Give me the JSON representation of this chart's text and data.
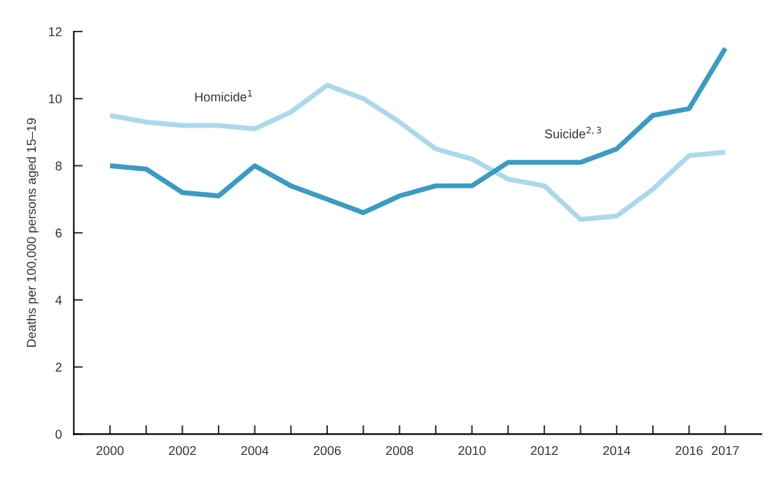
{
  "chart_data": {
    "type": "line",
    "ylabel": "Deaths per 100,000 persons aged 15–19",
    "x": [
      2000,
      2001,
      2002,
      2003,
      2004,
      2005,
      2006,
      2007,
      2008,
      2009,
      2010,
      2011,
      2012,
      2013,
      2014,
      2015,
      2016,
      2017
    ],
    "series": [
      {
        "name": "Homicide$^{1}$",
        "color": "#acd9ea",
        "values": [
          9.5,
          9.3,
          9.2,
          9.2,
          9.1,
          9.6,
          10.4,
          10.0,
          9.3,
          8.5,
          8.2,
          7.6,
          7.4,
          6.4,
          6.5,
          7.3,
          8.3,
          8.4
        ]
      },
      {
        "name": "Suicide$^{2,3}$",
        "color": "#3a9bc3",
        "values": [
          8.0,
          7.9,
          7.2,
          7.1,
          8.0,
          7.4,
          7.0,
          6.6,
          7.1,
          7.4,
          7.4,
          8.1,
          8.1,
          8.1,
          8.5,
          9.5,
          9.7,
          11.5
        ]
      }
    ],
    "xlim": [
      1999,
      2018
    ],
    "ylim": [
      0,
      12
    ],
    "yticks": [
      0,
      2,
      4,
      6,
      8,
      10,
      12
    ],
    "xticks": [
      2000,
      {
        "value": 2001,
        "label": null
      },
      2002,
      {
        "value": 2003,
        "label": null
      },
      2004,
      {
        "value": 2005,
        "label": null
      },
      2006,
      {
        "value": 2007,
        "label": null
      },
      2008,
      {
        "value": 2009,
        "label": null
      },
      2010,
      {
        "value": 2011,
        "label": null
      },
      2012,
      {
        "value": 2013,
        "label": null
      },
      2014,
      {
        "value": 2015,
        "label": null
      },
      2016,
      2017
    ],
    "grid": false,
    "legend": false,
    "marker": "none",
    "line_style": "solid"
  }
}
